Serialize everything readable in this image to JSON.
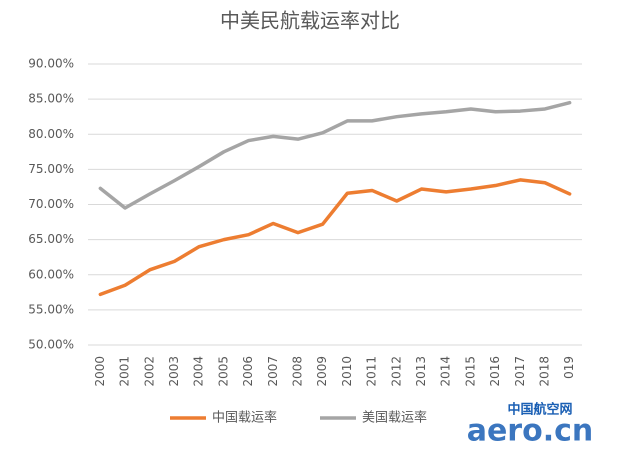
{
  "chart_data": {
    "type": "line",
    "title": "中美民航载运率对比",
    "categories": [
      "2000",
      "2001",
      "2002",
      "2003",
      "2004",
      "2005",
      "2006",
      "2007",
      "2008",
      "2009",
      "2010",
      "2011",
      "2012",
      "2013",
      "2014",
      "2015",
      "2016",
      "2017",
      "2018",
      "019"
    ],
    "series": [
      {
        "name": "中国载运率",
        "color": "#ed7d31",
        "values": [
          57.2,
          58.5,
          60.7,
          61.9,
          64.0,
          65.0,
          65.7,
          67.3,
          66.0,
          67.2,
          71.6,
          72.0,
          70.5,
          72.2,
          71.8,
          72.2,
          72.7,
          73.5,
          73.1,
          71.5
        ]
      },
      {
        "name": "美国载运率",
        "color": "#a5a5a5",
        "values": [
          72.3,
          69.5,
          71.5,
          73.4,
          75.4,
          77.5,
          79.1,
          79.7,
          79.3,
          80.2,
          81.9,
          81.9,
          82.5,
          82.9,
          83.2,
          83.6,
          83.2,
          83.3,
          83.6,
          84.5
        ]
      }
    ],
    "ylim": [
      50,
      90
    ],
    "yticks": [
      {
        "value": 50,
        "label": "50.00%"
      },
      {
        "value": 55,
        "label": "55.00%"
      },
      {
        "value": 60,
        "label": "60.00%"
      },
      {
        "value": 65,
        "label": "65.00%"
      },
      {
        "value": 70,
        "label": "70.00%"
      },
      {
        "value": 75,
        "label": "75.00%"
      },
      {
        "value": 80,
        "label": "80.00%"
      },
      {
        "value": 85,
        "label": "85.00%"
      },
      {
        "value": 90,
        "label": "90.00%"
      }
    ],
    "grid": true,
    "legend": "bottom",
    "watermark": [
      "中国航空网",
      "aero.cn"
    ]
  }
}
